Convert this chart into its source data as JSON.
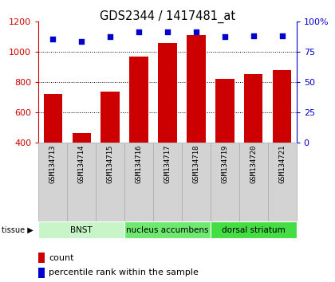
{
  "title": "GDS2344 / 1417481_at",
  "samples": [
    "GSM134713",
    "GSM134714",
    "GSM134715",
    "GSM134716",
    "GSM134717",
    "GSM134718",
    "GSM134719",
    "GSM134720",
    "GSM134721"
  ],
  "counts": [
    720,
    460,
    735,
    965,
    1055,
    1110,
    820,
    850,
    875
  ],
  "percentiles": [
    85,
    83,
    87,
    91,
    91,
    91,
    87,
    88,
    88
  ],
  "tissue_groups": [
    {
      "label": "BNST",
      "start": 0,
      "end": 3,
      "color": "#c8f5c8"
    },
    {
      "label": "nucleus accumbens",
      "start": 3,
      "end": 6,
      "color": "#6ee86e"
    },
    {
      "label": "dorsal striatum",
      "start": 6,
      "end": 9,
      "color": "#44dd44"
    }
  ],
  "bar_color": "#cc0000",
  "dot_color": "#0000cc",
  "ylim_left": [
    400,
    1200
  ],
  "ylim_right": [
    0,
    100
  ],
  "yticks_left": [
    400,
    600,
    800,
    1000,
    1200
  ],
  "yticks_right": [
    0,
    25,
    50,
    75,
    100
  ],
  "left_tick_color": "#cc0000",
  "right_tick_color": "#0000cc",
  "sample_bg_color": "#d3d3d3",
  "sample_border_color": "#aaaaaa"
}
